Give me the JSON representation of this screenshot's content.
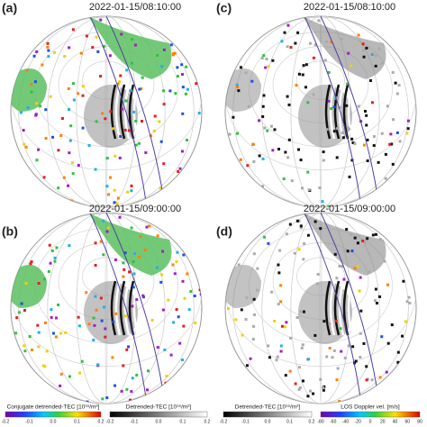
{
  "panels": [
    {
      "label": "(a)",
      "time": "2022-01-15/08:10:00"
    },
    {
      "label": "(c)",
      "time": "2022-01-15/08:10:00"
    },
    {
      "label": "(b)",
      "time": "2022-01-15/09:00:00"
    },
    {
      "label": "(d)",
      "time": "2022-01-15/09:00:00"
    }
  ],
  "colorbars": [
    {
      "title": "Conjugate detrended-TEC [10¹⁶/m²]",
      "ticks": [
        "-0.2",
        "-0.1",
        "0.0",
        "0.1",
        "0.2"
      ]
    },
    {
      "title": "Detrended-TEC [10¹⁶/m²]",
      "ticks": [
        "-0.2",
        "-0.1",
        "0.0",
        "0.1",
        "0.2"
      ]
    },
    {
      "title": "Detrended-TEC [10¹⁶/m²]",
      "ticks": [
        "-0.2",
        "-0.1",
        "0.0",
        "0.1",
        "0.2"
      ]
    },
    {
      "title": "LOS Doppler vel. [m/s]",
      "ticks": [
        "-80",
        "-60",
        "-40",
        "-20",
        "0",
        "20",
        "40",
        "60",
        "80"
      ]
    }
  ]
}
